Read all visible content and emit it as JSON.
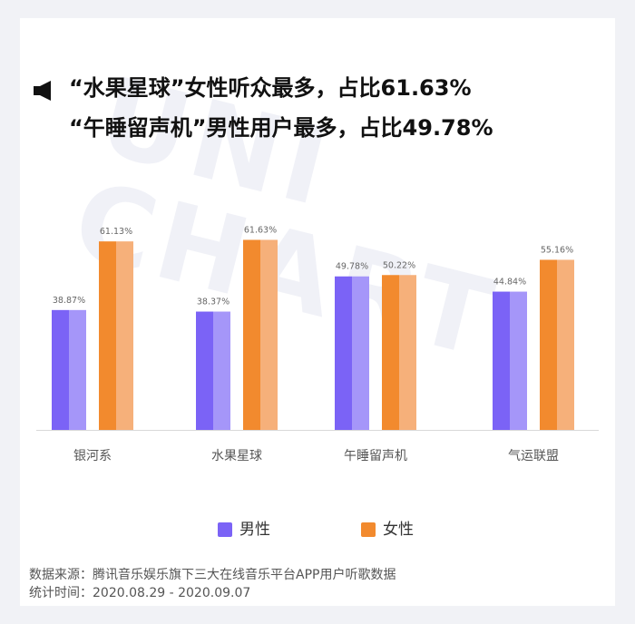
{
  "title": {
    "line1": "“水果星球”女性听众最多，占比61.63%",
    "line2": "“午睡留声机”男性用户最多，占比49.78%"
  },
  "watermark": "UNI CHART",
  "legend": {
    "male": "男性",
    "female": "女性"
  },
  "colors": {
    "male": "#7b63f6",
    "male_light": "#a596f9",
    "female": "#f28a2e",
    "female_light": "#f6b07a",
    "axis": "#d9d9d9",
    "label": "#666666",
    "category": "#555555"
  },
  "source": {
    "line1": "数据来源：腾讯音乐娱乐旗下三大在线音乐平台APP用户听歌数据",
    "line2": "统计时间：2020.08.29 - 2020.09.07"
  },
  "chart_data": {
    "type": "bar",
    "categories": [
      "银河系",
      "水果星球",
      "午睡留声机",
      "气运联盟"
    ],
    "series": [
      {
        "name": "男性",
        "values": [
          38.87,
          38.37,
          49.78,
          44.84
        ],
        "labels": [
          "38.87%",
          "38.37%",
          "49.78%",
          "44.84%"
        ]
      },
      {
        "name": "女性",
        "values": [
          61.13,
          61.63,
          50.22,
          55.16
        ],
        "labels": [
          "61.13%",
          "61.63%",
          "50.22%",
          "55.16%"
        ]
      }
    ],
    "legend_position": "bottom",
    "grid": false,
    "unit": "%"
  }
}
